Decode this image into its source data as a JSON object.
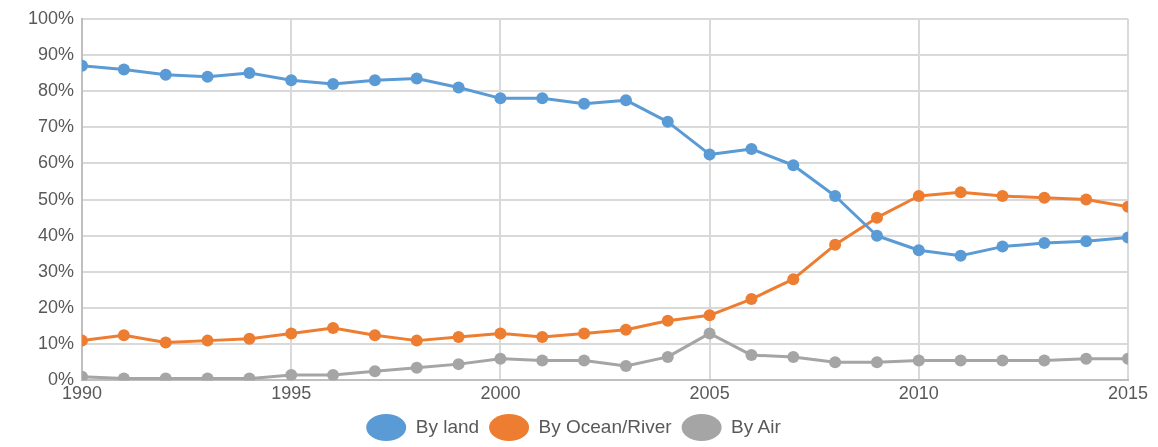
{
  "chart_data": {
    "type": "line",
    "x": [
      1990,
      1991,
      1992,
      1993,
      1994,
      1995,
      1996,
      1997,
      1998,
      1999,
      2000,
      2001,
      2002,
      2003,
      2004,
      2005,
      2006,
      2007,
      2008,
      2009,
      2010,
      2011,
      2012,
      2013,
      2014,
      2015
    ],
    "series": [
      {
        "name": "By land",
        "color": "#5b9bd5",
        "values": [
          87,
          86,
          84.5,
          84,
          85,
          83,
          82,
          83,
          83.5,
          81,
          78,
          78,
          76.5,
          77.5,
          71.5,
          62.5,
          64,
          59.5,
          51,
          40,
          36,
          34.5,
          37,
          38,
          38.5,
          39.5
        ]
      },
      {
        "name": "By Ocean/River",
        "color": "#ed7d31",
        "values": [
          11,
          12.5,
          10.5,
          11,
          11.5,
          13,
          14.5,
          12.5,
          11,
          12,
          13,
          12,
          13,
          14,
          16.5,
          18,
          22.5,
          28,
          37.5,
          45,
          51,
          52,
          51,
          50.5,
          50,
          48
        ]
      },
      {
        "name": "By Air",
        "color": "#a5a5a5",
        "values": [
          1,
          0.5,
          0.5,
          0.5,
          0.5,
          1.5,
          1.5,
          2.5,
          3.5,
          4.5,
          6,
          5.5,
          5.5,
          4,
          6.5,
          13,
          7,
          6.5,
          5,
          5,
          5.5,
          5.5,
          5.5,
          5.5,
          6,
          6
        ]
      }
    ],
    "xlim": [
      1990,
      2015
    ],
    "xticks": [
      1990,
      1995,
      2000,
      2005,
      2010,
      2015
    ],
    "ylim": [
      0,
      100
    ],
    "yticks": [
      {
        "value": 0,
        "label": "0%"
      },
      {
        "value": 10,
        "label": "10%"
      },
      {
        "value": 20,
        "label": "20%"
      },
      {
        "value": 30,
        "label": "30%"
      },
      {
        "value": 40,
        "label": "40%"
      },
      {
        "value": 50,
        "label": "50%"
      },
      {
        "value": 60,
        "label": "60%"
      },
      {
        "value": 70,
        "label": "70%"
      },
      {
        "value": 80,
        "label": "80%"
      },
      {
        "value": 90,
        "label": "90%"
      },
      {
        "value": 100,
        "label": "100%"
      }
    ],
    "grid": true,
    "legend": "bottom",
    "marker": "circle",
    "line_style": "solid"
  }
}
